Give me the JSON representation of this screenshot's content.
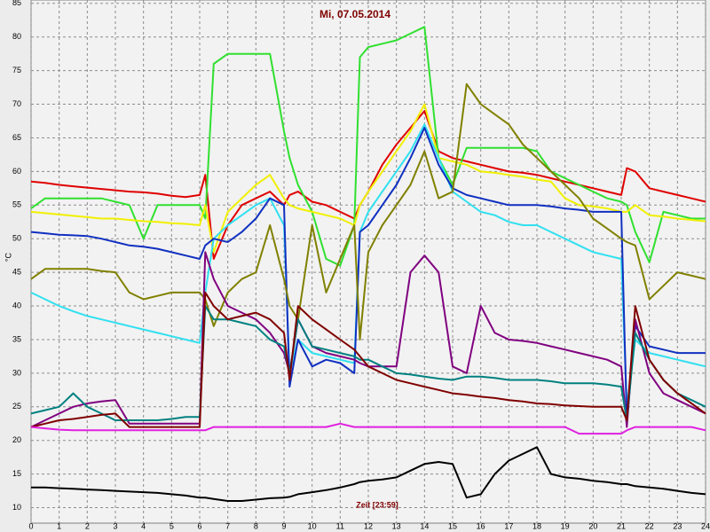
{
  "chart_data": {
    "type": "line",
    "title": "Mi, 07.05.2014",
    "xlabel": "Zeit [23:59]",
    "ylabel": "°C",
    "xlim": [
      0,
      24
    ],
    "ylim": [
      7.7,
      85.5
    ],
    "grid": true,
    "xticks": [
      0,
      1,
      2,
      3,
      4,
      5,
      6,
      7,
      8,
      9,
      10,
      11,
      12,
      13,
      14,
      15,
      16,
      17,
      18,
      19,
      20,
      21,
      22,
      23,
      24
    ],
    "yticks": [
      10,
      15,
      20,
      25,
      30,
      35,
      40,
      45,
      50,
      55,
      60,
      65,
      70,
      75,
      80,
      85
    ],
    "x": [
      0,
      0.5,
      1,
      1.5,
      2,
      2.5,
      3,
      3.5,
      4,
      4.5,
      5,
      5.5,
      6,
      6.2,
      6.5,
      7,
      7.5,
      8,
      8.5,
      9,
      9.2,
      9.5,
      10,
      10.5,
      11,
      11.5,
      11.7,
      12,
      12.5,
      13,
      13.5,
      14,
      14.5,
      15,
      15.5,
      16,
      16.5,
      17,
      17.5,
      18,
      18.5,
      19,
      19.5,
      20,
      20.5,
      21,
      21.2,
      21.5,
      22,
      22.5,
      23,
      23.5,
      24
    ],
    "series": [
      {
        "color": "#e00000",
        "values": [
          58.5,
          58.3,
          58,
          57.8,
          57.6,
          57.4,
          57.2,
          57,
          56.9,
          56.7,
          56.4,
          56.2,
          56.5,
          59.5,
          47,
          52,
          55,
          56,
          57,
          55,
          56.5,
          57,
          55.5,
          55,
          54,
          53,
          55,
          57,
          61,
          64,
          66.5,
          69,
          63,
          62,
          61.5,
          61,
          60.5,
          60,
          59.8,
          59.5,
          59,
          58.5,
          58,
          57.5,
          57,
          56.5,
          60.5,
          60,
          57.5,
          57,
          56.5,
          56,
          55.5
        ]
      },
      {
        "color": "#30e030",
        "values": [
          54.5,
          56,
          56,
          56,
          56,
          56,
          55.5,
          55,
          50,
          55,
          55,
          55,
          55,
          53,
          76,
          77.5,
          77.5,
          77.5,
          77.5,
          66,
          62,
          58,
          54,
          47,
          46,
          52,
          77,
          78.5,
          79,
          79.5,
          80.5,
          81.5,
          62,
          58,
          63.5,
          63.5,
          63.5,
          63.5,
          63.5,
          63,
          60,
          59,
          58,
          57,
          56,
          55.5,
          55,
          51,
          46.5,
          54,
          53.5,
          53,
          53
        ]
      },
      {
        "color": "#f0f000",
        "values": [
          54,
          53.8,
          53.6,
          53.4,
          53.2,
          53,
          53,
          52.8,
          52.6,
          52.5,
          52.3,
          52.2,
          52,
          55,
          48,
          54,
          56,
          58,
          59.5,
          56,
          55,
          54.5,
          54,
          53.5,
          53,
          52,
          55,
          57,
          60,
          63,
          66,
          70,
          62,
          61.5,
          61,
          60,
          59.8,
          59.5,
          59.2,
          58.8,
          58.5,
          56,
          55,
          54.8,
          54.5,
          54,
          54,
          55,
          53.5,
          53.3,
          53,
          52.8,
          52.6
        ]
      },
      {
        "color": "#30e0f0",
        "values": [
          42,
          41,
          40,
          39.2,
          38.5,
          38,
          37.5,
          37,
          36.5,
          36,
          35.5,
          35,
          34.5,
          42,
          50,
          52,
          53.5,
          55,
          56,
          52,
          30,
          35,
          33,
          32.5,
          32,
          31.5,
          51,
          54,
          57,
          60,
          63,
          67,
          62,
          57,
          55.5,
          54,
          53.5,
          52.5,
          52,
          52,
          51,
          50,
          49,
          48,
          47.5,
          47,
          25,
          35,
          33,
          32.5,
          32,
          31.5,
          31
        ]
      },
      {
        "color": "#1030c0",
        "values": [
          51,
          50.8,
          50.6,
          50.5,
          50.4,
          50,
          49.5,
          49,
          48.8,
          48.5,
          48,
          47.5,
          47,
          49,
          50,
          49.5,
          51,
          53,
          56,
          55,
          28,
          35,
          31,
          32,
          31.5,
          30,
          51,
          52,
          55,
          58,
          62,
          66.5,
          61,
          57.5,
          56.5,
          56,
          55.5,
          55,
          55,
          55,
          54.8,
          54.5,
          54.3,
          54,
          54,
          54,
          23,
          37,
          34,
          33.5,
          33,
          33,
          33
        ]
      },
      {
        "color": "#808000",
        "values": [
          44,
          45.5,
          45.5,
          45.5,
          45.5,
          45.2,
          45,
          42,
          41,
          41.5,
          42,
          42,
          42,
          41,
          37,
          42,
          44,
          45,
          52,
          44,
          40,
          38,
          52,
          42,
          47,
          52,
          35,
          48,
          52,
          55,
          58,
          63,
          56,
          57,
          73,
          70,
          68.5,
          67,
          64,
          62,
          60,
          58,
          56,
          53,
          51.5,
          50,
          49.5,
          49,
          41,
          43,
          45,
          44.5,
          44
        ]
      },
      {
        "color": "#800080",
        "values": [
          22,
          23,
          24,
          25,
          25.5,
          25.8,
          26,
          22.5,
          22.5,
          22.5,
          22.5,
          22.5,
          22.5,
          48,
          44,
          40,
          39,
          38,
          36,
          33,
          30,
          38,
          34,
          33,
          32.5,
          32,
          31.5,
          31,
          31,
          31,
          45,
          47.5,
          45,
          31,
          30,
          40,
          36,
          35,
          34.8,
          34.5,
          34,
          33.5,
          33,
          32.5,
          32,
          31,
          22,
          38,
          30,
          27,
          26,
          25,
          24
        ]
      },
      {
        "color": "#008080",
        "values": [
          24,
          24.5,
          25,
          27,
          25,
          24,
          23,
          23,
          23,
          23,
          23.2,
          23.5,
          23.5,
          40,
          38,
          38,
          37.5,
          37,
          35,
          34,
          30,
          38,
          34,
          33.5,
          33,
          32.5,
          32,
          32,
          31,
          30,
          29.8,
          29.5,
          29.2,
          29,
          29.5,
          29.5,
          29.3,
          29,
          29,
          29,
          28.8,
          28.5,
          28.5,
          28.5,
          28.3,
          28,
          23,
          36,
          32,
          29,
          27,
          26,
          25
        ]
      },
      {
        "color": "#800000",
        "values": [
          22,
          22.5,
          23,
          23.2,
          23.5,
          23.8,
          24,
          22,
          22,
          22,
          22,
          22,
          22,
          42,
          40,
          38,
          38.5,
          39,
          38,
          36,
          29,
          40,
          38,
          36.5,
          35,
          33.5,
          32.5,
          31,
          30,
          29,
          28.5,
          28,
          27.5,
          27,
          26.8,
          26.5,
          26.3,
          26,
          25.8,
          25.5,
          25.4,
          25.2,
          25.1,
          25,
          25,
          25,
          23,
          40,
          32,
          29,
          27,
          25.5,
          24
        ]
      },
      {
        "color": "#e020e0",
        "values": [
          22,
          21.8,
          21.6,
          21.5,
          21.5,
          21.5,
          21.5,
          21.5,
          21.5,
          21.5,
          21.5,
          21.5,
          21.5,
          21.5,
          22,
          22,
          22,
          22,
          22,
          22,
          22,
          22,
          22,
          22,
          22.5,
          22,
          22,
          22,
          22,
          22,
          22,
          22,
          22,
          22,
          22,
          22,
          22,
          22,
          22,
          22,
          22,
          22,
          21,
          21,
          21,
          21,
          21.5,
          22,
          22,
          22,
          22,
          22,
          21.5
        ]
      },
      {
        "color": "#000000",
        "values": [
          13,
          13,
          12.9,
          12.8,
          12.7,
          12.6,
          12.5,
          12.4,
          12.3,
          12.2,
          12,
          11.8,
          11.5,
          11.5,
          11.3,
          11,
          11,
          11.2,
          11.4,
          11.5,
          11.6,
          12,
          12.3,
          12.6,
          13,
          13.5,
          13.8,
          14,
          14.2,
          14.5,
          15.5,
          16.5,
          16.8,
          16.5,
          11.5,
          12,
          15,
          17,
          18,
          19,
          15,
          14.5,
          14.3,
          14,
          13.8,
          13.5,
          13.5,
          13.2,
          13,
          12.8,
          12.5,
          12.2,
          12
        ]
      }
    ]
  }
}
